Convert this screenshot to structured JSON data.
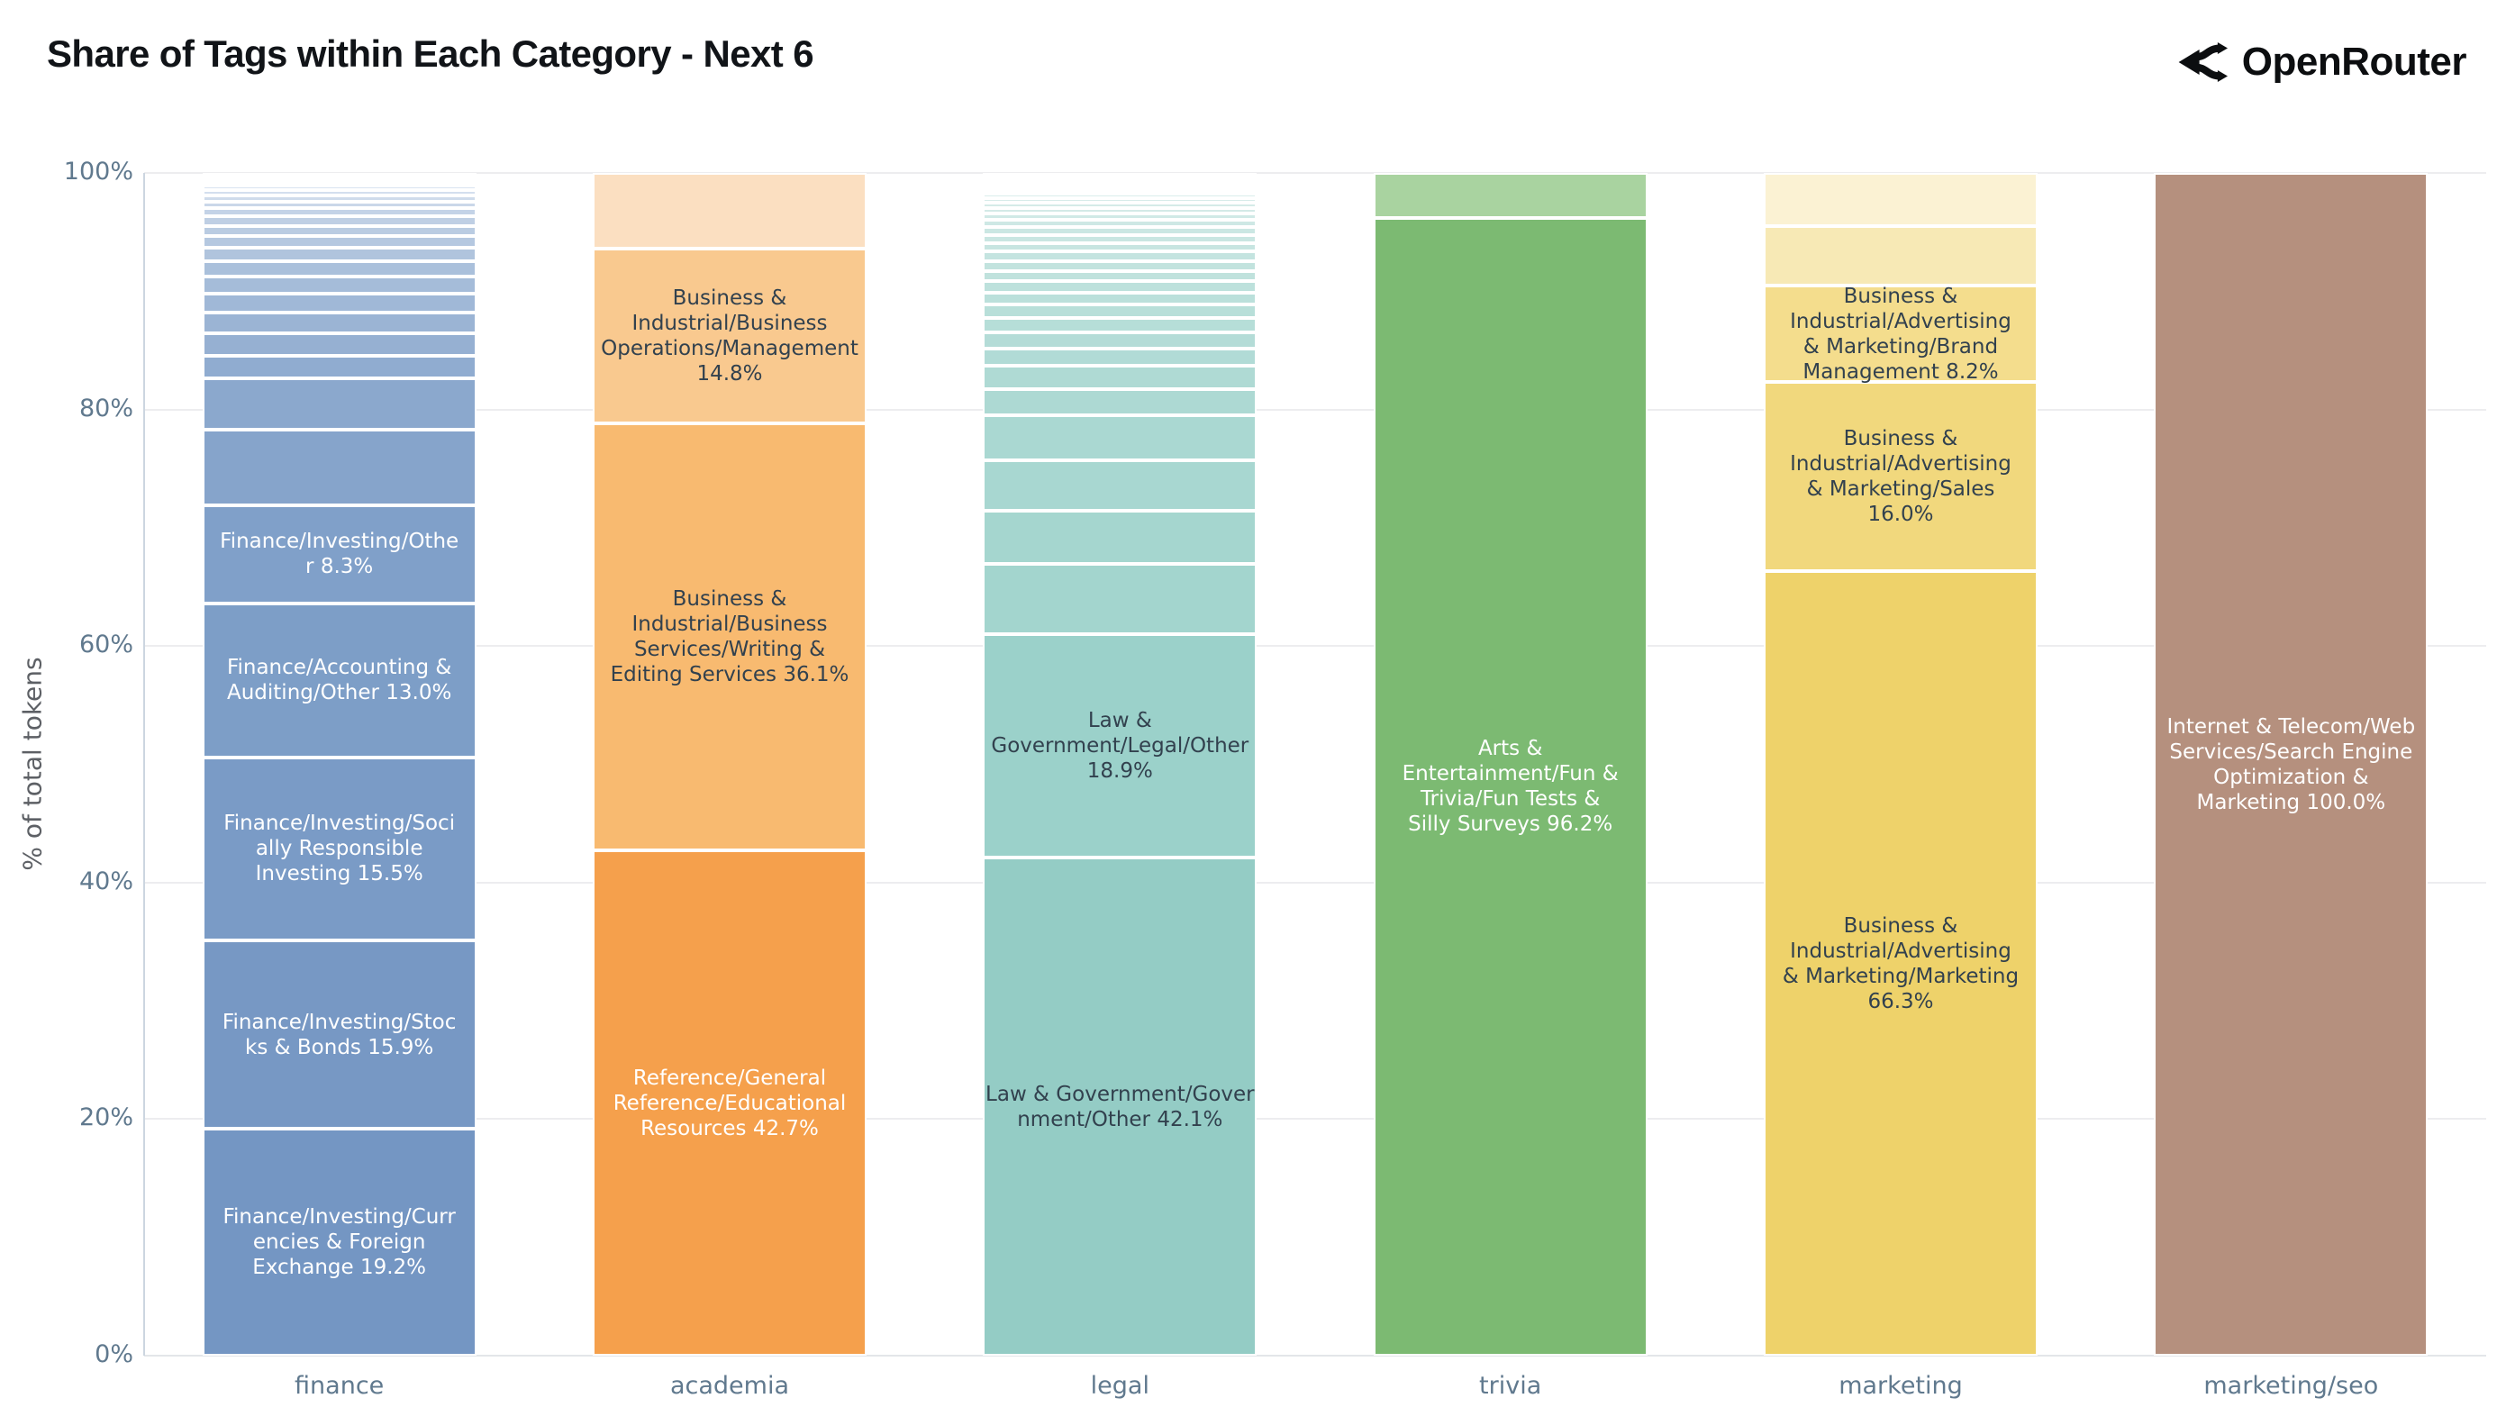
{
  "header": {
    "title": "Share of Tags within Each Category - Next 6",
    "brand": "OpenRouter"
  },
  "colors": {
    "background": "#ffffff",
    "grid_line": "#ededef",
    "axis_line": "#ccd6e0",
    "tick_label": "#60798e",
    "axis_title": "#5d6065",
    "segment_border": "#ffffff",
    "label_dark": "#32414e",
    "label_light": "#ffffff"
  },
  "chart_data": {
    "type": "bar",
    "stacked": true,
    "orientation": "vertical",
    "title": "Share of Tags within Each Category - Next 6",
    "xlabel": "",
    "ylabel": "% of total tokens",
    "ylim": [
      0,
      100
    ],
    "yticks": [
      0,
      20,
      40,
      60,
      80,
      100
    ],
    "ytick_suffix": "%",
    "grid": true,
    "legend": "none",
    "categories": [
      "finance",
      "academia",
      "legal",
      "trivia",
      "marketing",
      "marketing/seo"
    ],
    "bars": [
      {
        "category": "finance",
        "segments": [
          {
            "label": "Finance/Investing/Currencies & Foreign Exchange",
            "value": 19.2,
            "color": "#7496c3",
            "text": "light",
            "lines": [
              "Finance/Investing/Curr",
              "encies & Foreign",
              "Exchange 19.2%"
            ]
          },
          {
            "label": "Finance/Investing/Stocks & Bonds",
            "value": 15.9,
            "color": "#7798c4",
            "text": "light",
            "lines": [
              "Finance/Investing/Stoc",
              "ks & Bonds 15.9%"
            ]
          },
          {
            "label": "Finance/Investing/Socially Responsible Investing",
            "value": 15.5,
            "color": "#7a9bc6",
            "text": "light",
            "lines": [
              "Finance/Investing/Soci",
              "ally Responsible",
              "Investing 15.5%"
            ]
          },
          {
            "label": "Finance/Accounting & Auditing/Other",
            "value": 13.0,
            "color": "#7d9ec7",
            "text": "light",
            "lines": [
              "Finance/Accounting &",
              "Auditing/Other 13.0%"
            ]
          },
          {
            "label": "Finance/Investing/Other",
            "value": 8.3,
            "color": "#80a0c9",
            "text": "light",
            "lines": [
              "Finance/Investing/Othe",
              "r 8.3%"
            ]
          }
        ],
        "fillers": {
          "note": "unlabeled small tags totaling 28.1%",
          "weights": [
            6.5,
            4.4,
            2.0,
            1.9,
            1.8,
            1.6,
            1.5,
            1.3,
            1.15,
            1.0,
            0.9,
            0.8,
            0.7,
            0.6,
            0.5,
            0.45,
            0.4,
            0.35,
            0.3,
            0.25,
            0.2
          ],
          "color_from": "#86a4cb",
          "color_to": "#eef3f9"
        }
      },
      {
        "category": "academia",
        "segments": [
          {
            "label": "Reference/General Reference/Educational Resources",
            "value": 42.7,
            "color": "#f5a04c",
            "text": "light",
            "lines": [
              "Reference/General",
              "Reference/Educational",
              "Resources 42.7%"
            ]
          },
          {
            "label": "Business & Industrial/Business Services/Writing & Editing Services",
            "value": 36.1,
            "color": "#f8ba70",
            "text": "dark",
            "lines": [
              "Business &",
              "Industrial/Business",
              "Services/Writing &",
              "Editing Services 36.1%"
            ]
          },
          {
            "label": "Business & Industrial/Business Operations/Management",
            "value": 14.8,
            "color": "#f9c98f",
            "text": "dark",
            "lines": [
              "Business &",
              "Industrial/Business",
              "Operations/Management",
              "14.8%"
            ]
          }
        ],
        "fillers": {
          "note": "unlabeled small tags totaling 6.4%",
          "weights": [
            1
          ],
          "color_from": "#fbdfc1",
          "color_to": "#fbdfc1"
        }
      },
      {
        "category": "legal",
        "segments": [
          {
            "label": "Law & Government/Government/Other",
            "value": 42.1,
            "color": "#94ccc5",
            "text": "dark",
            "lines": [
              "Law & Government/Gover",
              "nment/Other 42.1%"
            ]
          },
          {
            "label": "Law & Government/Legal/Other",
            "value": 18.9,
            "color": "#9bd1ca",
            "text": "dark",
            "lines": [
              "Law &",
              "Government/Legal/Other",
              "18.9%"
            ]
          }
        ],
        "fillers": {
          "note": "unlabeled small tags totaling 39.0%",
          "weights": [
            6.0,
            4.6,
            4.3,
            3.9,
            2.2,
            2.0,
            1.5,
            1.35,
            1.25,
            1.15,
            1.05,
            0.95,
            0.9,
            0.85,
            0.8,
            0.75,
            0.7,
            0.65,
            0.6,
            0.55,
            0.5,
            0.45,
            0.4,
            0.35,
            0.3,
            0.28,
            0.25,
            0.22,
            0.2,
            0.18,
            0.15,
            0.12,
            0.1
          ],
          "color_from": "#a3d5ce",
          "color_to": "#eff7f6"
        }
      },
      {
        "category": "trivia",
        "segments": [
          {
            "label": "Arts & Entertainment/Fun & Trivia/Fun Tests & Silly Surveys",
            "value": 96.2,
            "color": "#7cba72",
            "text": "light",
            "lines": [
              "Arts &",
              "Entertainment/Fun &",
              "Trivia/Fun Tests &",
              "Silly Surveys 96.2%"
            ]
          }
        ],
        "fillers": {
          "note": "unlabeled small tags totaling 3.8%",
          "weights": [
            1
          ],
          "color_from": "#a9d3a0",
          "color_to": "#a9d3a0"
        }
      },
      {
        "category": "marketing",
        "segments": [
          {
            "label": "Business & Industrial/Advertising & Marketing/Marketing",
            "value": 66.3,
            "color": "#eed26a",
            "text": "dark",
            "lines": [
              "Business &",
              "Industrial/Advertising",
              "& Marketing/Marketing",
              "66.3%"
            ]
          },
          {
            "label": "Business & Industrial/Advertising & Marketing/Sales",
            "value": 16.0,
            "color": "#f1d87d",
            "text": "dark",
            "lines": [
              "Business &",
              "Industrial/Advertising",
              "& Marketing/Sales",
              "16.0%"
            ]
          },
          {
            "label": "Business & Industrial/Advertising & Marketing/Brand Management",
            "value": 8.2,
            "color": "#f4dd8d",
            "text": "dark",
            "lines": [
              "Business &",
              "Industrial/Advertising",
              "& Marketing/Brand",
              "Management 8.2%"
            ]
          }
        ],
        "fillers": {
          "note": "unlabeled small tags totaling 9.5%",
          "weights": [
            5.0,
            4.5
          ],
          "color_from": "#f7e9b5",
          "color_to": "#fbf2d3"
        }
      },
      {
        "category": "marketing/seo",
        "segments": [
          {
            "label": "Internet & Telecom/Web Services/Search Engine Optimization & Marketing",
            "value": 100.0,
            "color": "#b5907e",
            "text": "light",
            "lines": [
              "Internet & Telecom/Web",
              "Services/Search Engine",
              "Optimization &",
              "Marketing 100.0%"
            ]
          }
        ],
        "fillers": {
          "note": "none",
          "weights": [],
          "color_from": "#b5907e",
          "color_to": "#b5907e"
        }
      }
    ]
  }
}
